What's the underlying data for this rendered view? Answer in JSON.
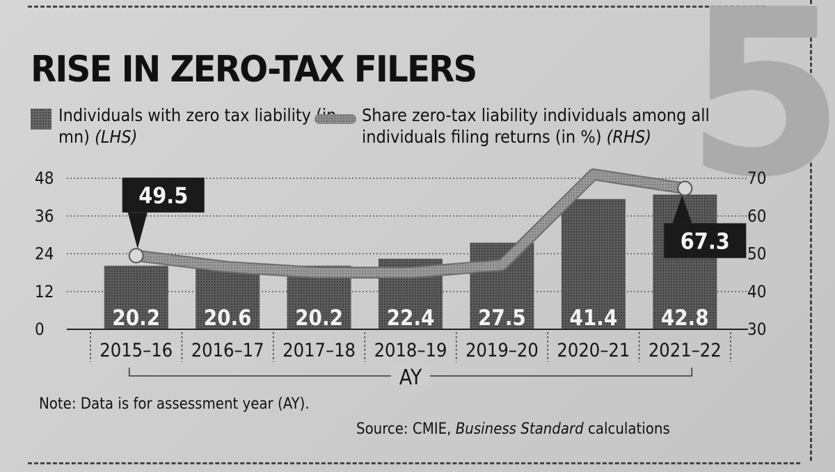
{
  "title": "RISE IN ZERO-TAX FILERS",
  "legend": {
    "bars_label": "Individuals with zero tax liability (in mn)",
    "bars_axis": "(LHS)",
    "line_label": "Share zero-tax liability individuals among all individuals filing returns (in %)",
    "line_axis": "(RHS)"
  },
  "note": "Note: Data is for assessment year (AY).",
  "source": {
    "prefix": "Source: CMIE, ",
    "publication": "Business Standard",
    "suffix": " calculations"
  },
  "decor": {
    "big_number": "5"
  },
  "chart_data": {
    "type": "bar",
    "categories": [
      "2015-16",
      "2016-17",
      "2017-18",
      "2018-19",
      "2019-20",
      "2020-21",
      "2021-22"
    ],
    "category_display": [
      "2015–16",
      "2016–17",
      "2017–18",
      "2018–19",
      "2019–20",
      "2020–21",
      "2021–22"
    ],
    "xlabel": "AY",
    "series": [
      {
        "name": "Individuals with zero tax liability (in mn)",
        "type": "bar",
        "axis": "left",
        "values": [
          20.2,
          20.6,
          20.2,
          22.4,
          27.5,
          41.4,
          42.8
        ],
        "value_labels": [
          "20.2",
          "20.6",
          "20.2",
          "22.4",
          "27.5",
          "41.4",
          "42.8"
        ]
      },
      {
        "name": "Share zero-tax liability individuals among all individuals filing returns (in %)",
        "type": "line",
        "axis": "right",
        "values": [
          49.5,
          46.5,
          45.0,
          45.0,
          47.0,
          71.0,
          67.3
        ],
        "callouts": [
          {
            "index": 0,
            "label": "49.5"
          },
          {
            "index": 6,
            "label": "67.3"
          }
        ]
      }
    ],
    "left_axis": {
      "ticks": [
        0,
        12,
        24,
        36,
        48
      ],
      "range": [
        0,
        48
      ]
    },
    "right_axis": {
      "ticks": [
        30,
        40,
        50,
        60,
        70
      ],
      "range": [
        30,
        70
      ]
    },
    "grid": true,
    "colors": {
      "bar": "#4a4a4a",
      "line": "#8c8c8c",
      "callout": "#1a1a1a"
    }
  }
}
